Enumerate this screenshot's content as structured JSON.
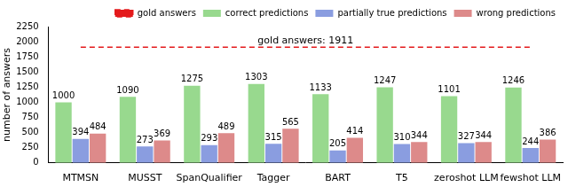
{
  "chart_data": {
    "type": "bar",
    "categories": [
      "MTMSN",
      "MUSST",
      "SpanQualifier",
      "Tagger",
      "BART",
      "T5",
      "zeroshot LLM",
      "fewshot LLM"
    ],
    "series": [
      {
        "name": "gold answers",
        "type": "line",
        "line_style": "dashed",
        "color": "#e41a1c",
        "values": [
          1911,
          1911,
          1911,
          1911,
          1911,
          1911,
          1911,
          1911
        ]
      },
      {
        "name": "correct predictions",
        "color": "#98d98e",
        "values": [
          1000,
          1090,
          1275,
          1303,
          1133,
          1247,
          1101,
          1246
        ]
      },
      {
        "name": "partially true predictions",
        "color": "#8a9de0",
        "values": [
          394,
          273,
          293,
          315,
          205,
          310,
          327,
          244
        ]
      },
      {
        "name": "wrong predictions",
        "color": "#dd8a8a",
        "values": [
          484,
          369,
          489,
          565,
          414,
          344,
          344,
          386
        ]
      }
    ],
    "annotations": [
      {
        "text": "gold answers: 1911"
      }
    ],
    "y_label": "number of answers",
    "ylim": [
      0,
      2250
    ],
    "yticks": [
      0,
      250,
      500,
      750,
      1000,
      1250,
      1500,
      1750,
      2000,
      2250
    ],
    "grid": false,
    "legend": "top right",
    "data_labels": true
  }
}
